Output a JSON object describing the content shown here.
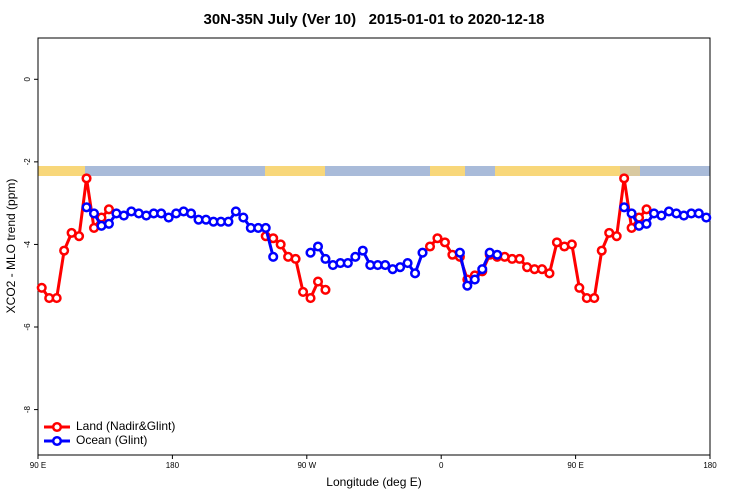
{
  "chart_data": {
    "type": "line",
    "title": "30N-35N July (Ver 10)   2015-01-01 to 2020-12-18",
    "x_label": "Longitude (deg E)",
    "y_label": "XCO2 - MLO trend (ppm)",
    "xlim": [
      90,
      540
    ],
    "xticks": [
      {
        "value": 90,
        "label": "90 E"
      },
      180,
      {
        "value": 270,
        "label": "90 W"
      },
      {
        "value": 360,
        "label": "0"
      },
      {
        "value": 450,
        "label": "90 E"
      },
      {
        "value": 540,
        "label": "180"
      }
    ],
    "ylim": [
      -9.1,
      1
    ],
    "yticks": [
      0,
      -2,
      -4,
      -6,
      -8
    ],
    "legend": "bottom-left",
    "x": [
      92.5,
      97.5,
      102.5,
      107.5,
      112.5,
      117.5,
      122.5,
      127.5,
      132.5,
      137.5,
      142.5,
      147.5,
      152.5,
      157.5,
      162.5,
      167.5,
      172.5,
      177.5,
      182.5,
      187.5,
      192.5,
      197.5,
      202.5,
      207.5,
      212.5,
      217.5,
      222.5,
      227.5,
      232.5,
      237.5,
      242.5,
      247.5,
      252.5,
      257.5,
      262.5,
      267.5,
      272.5,
      277.5,
      282.5,
      287.5,
      292.5,
      297.5,
      302.5,
      307.5,
      312.5,
      317.5,
      322.5,
      327.5,
      332.5,
      337.5,
      342.5,
      347.5,
      352.5,
      357.5,
      362.5,
      367.5,
      372.5,
      377.5,
      382.5,
      387.5,
      392.5,
      397.5,
      402.5,
      407.5,
      412.5,
      417.5,
      422.5,
      427.5,
      432.5,
      437.5,
      442.5,
      447.5,
      452.5,
      457.5,
      462.5,
      467.5,
      472.5,
      477.5,
      482.5,
      487.5,
      492.5,
      497.5,
      502.5,
      507.5,
      512.5,
      517.5,
      522.5,
      527.5,
      532.5,
      537.5
    ],
    "series": [
      {
        "name": "Land (Nadir&Glint)",
        "color": "#ff0000",
        "values": [
          -5.05,
          -5.3,
          -5.3,
          -4.15,
          -3.72,
          -3.8,
          -2.4,
          -3.6,
          -3.35,
          -3.15,
          null,
          null,
          null,
          null,
          null,
          null,
          null,
          null,
          null,
          null,
          null,
          null,
          null,
          null,
          null,
          null,
          null,
          null,
          null,
          null,
          -3.8,
          -3.85,
          -4.0,
          -4.3,
          -4.35,
          -5.15,
          -5.3,
          -4.9,
          -5.1,
          null,
          null,
          null,
          null,
          null,
          null,
          null,
          null,
          null,
          null,
          null,
          null,
          null,
          -4.05,
          -3.85,
          -3.95,
          -4.25,
          -4.3,
          -4.85,
          -4.75,
          -4.65,
          -4.25,
          -4.3,
          -4.3,
          -4.35,
          -4.35,
          -4.55,
          -4.6,
          -4.6,
          -4.7,
          -3.95,
          -4.05,
          -4.0,
          -5.05,
          -5.3,
          -5.3,
          -4.15,
          -3.72,
          -3.8,
          -2.4,
          -3.6,
          -3.35,
          -3.15,
          null,
          null,
          null,
          null,
          null,
          null,
          null,
          null
        ]
      },
      {
        "name": "Ocean (Glint)",
        "color": "#0000ff",
        "values": [
          null,
          null,
          null,
          null,
          null,
          null,
          -3.1,
          -3.25,
          -3.55,
          -3.5,
          -3.25,
          -3.3,
          -3.2,
          -3.25,
          -3.3,
          -3.25,
          -3.25,
          -3.35,
          -3.25,
          -3.2,
          -3.25,
          -3.4,
          -3.4,
          -3.45,
          -3.45,
          -3.45,
          -3.2,
          -3.35,
          -3.6,
          -3.6,
          -3.6,
          -4.3,
          null,
          null,
          null,
          null,
          -4.2,
          -4.05,
          -4.35,
          -4.5,
          -4.45,
          -4.45,
          -4.3,
          -4.15,
          -4.5,
          -4.5,
          -4.5,
          -4.6,
          -4.55,
          -4.45,
          -4.7,
          -4.2,
          null,
          null,
          null,
          null,
          -4.2,
          -5.0,
          -4.85,
          -4.6,
          -4.2,
          -4.25,
          null,
          null,
          null,
          null,
          null,
          null,
          null,
          null,
          null,
          null,
          null,
          null,
          null,
          null,
          null,
          null,
          -3.1,
          -3.25,
          -3.55,
          -3.5,
          -3.25,
          -3.3,
          -3.2,
          -3.25,
          -3.3,
          -3.25,
          -3.25,
          -3.35
        ]
      }
    ]
  }
}
